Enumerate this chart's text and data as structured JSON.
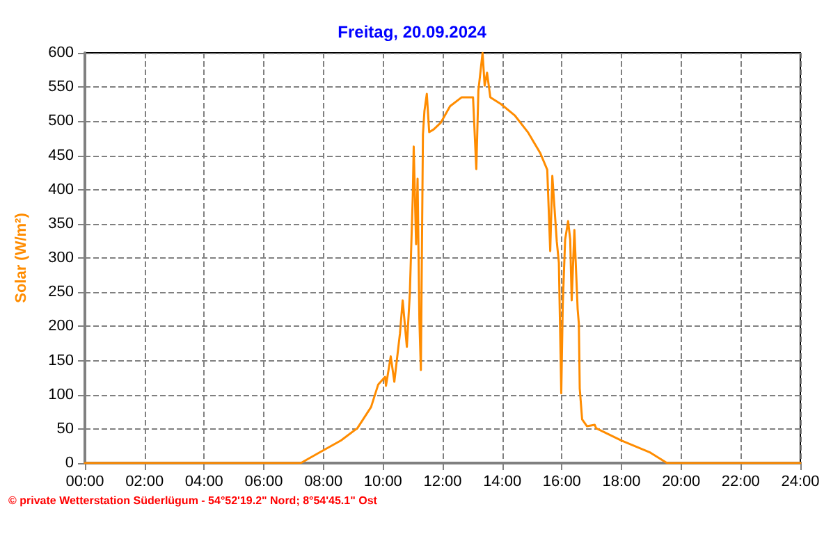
{
  "chart_data": {
    "type": "line",
    "title": "Freitag, 20.09.2024",
    "ylabel": "Solar (W/m²)",
    "annotations": [
      "© private Wetterstation Süderlügum - 54°52'19.2\" Nord; 8°54'45.1\" Ost"
    ],
    "x": [
      0,
      7.24,
      7.89,
      8.59,
      9.14,
      9.6,
      9.84,
      10.07,
      10.1,
      10.26,
      10.38,
      10.57,
      10.66,
      10.8,
      10.9,
      11.0,
      11.03,
      11.11,
      11.16,
      11.22,
      11.27,
      11.34,
      11.39,
      11.47,
      11.55,
      11.7,
      11.94,
      12.25,
      12.64,
      13.02,
      13.13,
      13.2,
      13.34,
      13.41,
      13.49,
      13.6,
      13.96,
      14.43,
      14.86,
      15.28,
      15.51,
      15.61,
      15.68,
      15.83,
      15.9,
      15.98,
      16.03,
      16.11,
      16.21,
      16.28,
      16.33,
      16.42,
      16.53,
      16.57,
      16.6,
      16.68,
      16.84,
      17.1,
      17.15,
      18.0,
      18.94,
      19.53,
      24
    ],
    "series": [
      {
        "color": "#ff8c00",
        "values": [
          0,
          0,
          16,
          33,
          51,
          82,
          115,
          126,
          113,
          156,
          119,
          190,
          238,
          170,
          248,
          392,
          463,
          320,
          416,
          211,
          136,
          481,
          515,
          540,
          484,
          488,
          498,
          522,
          535,
          535,
          430,
          545,
          600,
          552,
          571,
          535,
          525,
          508,
          484,
          453,
          429,
          310,
          420,
          324,
          293,
          102,
          231,
          327,
          354,
          327,
          238,
          341,
          225,
          204,
          109,
          64,
          54,
          56,
          51,
          33,
          16,
          0,
          0
        ]
      }
    ],
    "xlim": [
      0,
      24
    ],
    "xticks": [
      {
        "value": 0,
        "label": "00:00"
      },
      {
        "value": 2,
        "label": "02:00"
      },
      {
        "value": 4,
        "label": "04:00"
      },
      {
        "value": 6,
        "label": "06:00"
      },
      {
        "value": 8,
        "label": "08:00"
      },
      {
        "value": 10,
        "label": "10:00"
      },
      {
        "value": 12,
        "label": "12:00"
      },
      {
        "value": 14,
        "label": "14:00"
      },
      {
        "value": 16,
        "label": "16:00"
      },
      {
        "value": 18,
        "label": "18:00"
      },
      {
        "value": 20,
        "label": "20:00"
      },
      {
        "value": 22,
        "label": "22:00"
      },
      {
        "value": 24,
        "label": "24:00"
      }
    ],
    "ylim": [
      0,
      600
    ],
    "yticks": [
      0,
      50,
      100,
      150,
      200,
      250,
      300,
      350,
      400,
      450,
      500,
      550,
      600
    ],
    "grid": true,
    "marker": "none",
    "line_style": "solid"
  }
}
